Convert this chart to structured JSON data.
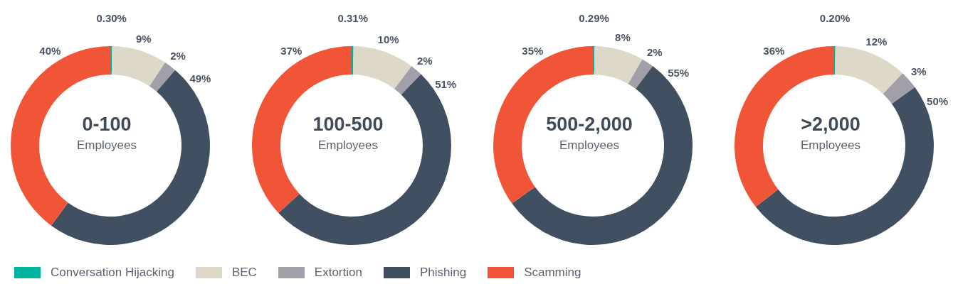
{
  "chart_data": [
    {
      "type": "donut",
      "title": "0-100",
      "subtitle": "Employees",
      "categories": [
        "Conversation Hijacking",
        "BEC",
        "Extortion",
        "Phishing",
        "Scamming"
      ],
      "values": [
        0.3,
        9,
        2,
        49,
        40
      ],
      "value_labels": [
        "0.30%",
        "9%",
        "2%",
        "49%",
        "40%"
      ],
      "colors": [
        "#00b39f",
        "#ddd8c8",
        "#a19fa8",
        "#415061",
        "#f05537"
      ],
      "legend": "bottom"
    },
    {
      "type": "donut",
      "title": "100-500",
      "subtitle": "Employees",
      "categories": [
        null,
        null,
        null,
        null,
        null
      ],
      "values": [
        0.31,
        10,
        2,
        51,
        37
      ],
      "value_labels": [
        "0.31%",
        "10%",
        "2%",
        "51%",
        "37%"
      ],
      "colors": [
        "#00b39f",
        "#ddd8c8",
        "#a19fa8",
        "#415061",
        "#f05537"
      ]
    },
    {
      "type": "donut",
      "title": "500-2,000",
      "subtitle": "Employees",
      "categories": [
        null,
        null,
        null,
        null,
        null
      ],
      "values": [
        0.29,
        8,
        2,
        55,
        35
      ],
      "value_labels": [
        "0.29%",
        "8%",
        "2%",
        "55%",
        "35%"
      ],
      "colors": [
        "#00b39f",
        "#ddd8c8",
        "#a19fa8",
        "#415061",
        "#f05537"
      ]
    },
    {
      "type": "donut",
      "title": ">2,000",
      "subtitle": "Employees",
      "categories": [
        null,
        null,
        null,
        null,
        null
      ],
      "values": [
        0.2,
        12,
        3,
        50,
        36
      ],
      "value_labels": [
        "0.20%",
        "12%",
        "3%",
        "50%",
        "36%"
      ],
      "colors": [
        "#00b39f",
        "#ddd8c8",
        "#a19fa8",
        "#415061",
        "#f05537"
      ]
    }
  ]
}
